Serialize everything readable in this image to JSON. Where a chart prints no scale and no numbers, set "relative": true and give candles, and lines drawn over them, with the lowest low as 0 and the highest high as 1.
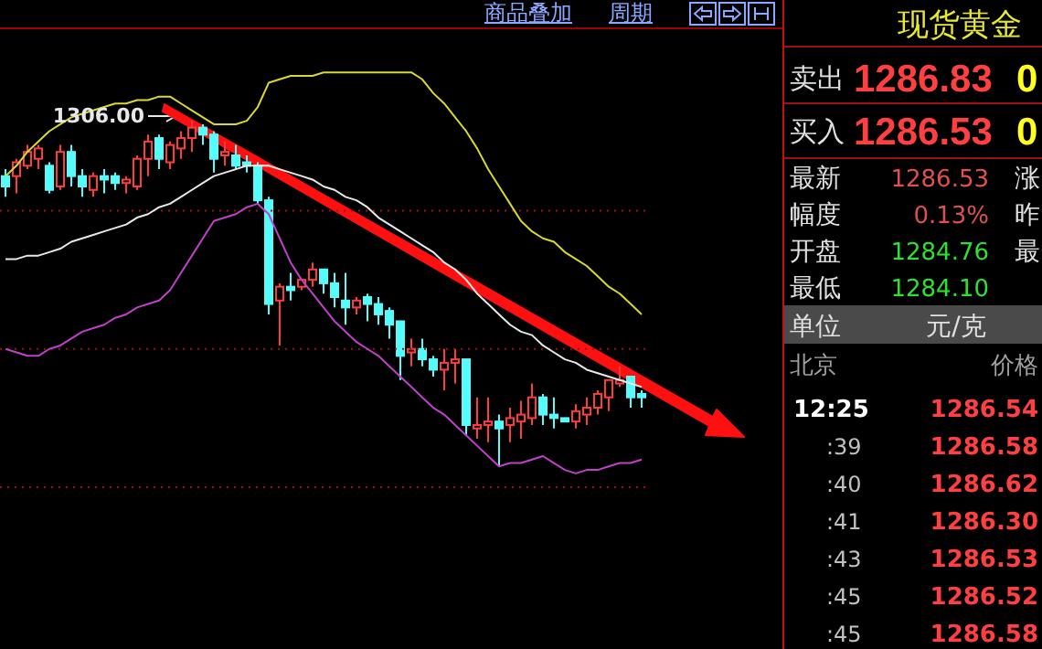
{
  "chart_data": [
    {
      "type": "candlestick",
      "relative": true,
      "tick_labels": false,
      "marker": "none",
      "line_style": "solid",
      "categories": [
        null,
        null,
        null,
        null,
        null,
        null,
        null,
        null,
        null,
        null,
        null,
        null,
        null,
        null,
        null,
        null,
        null,
        null,
        null,
        null,
        null,
        null,
        null,
        null,
        null,
        null,
        null,
        null,
        null,
        null,
        null,
        null,
        null,
        null,
        null,
        null,
        null,
        null,
        null,
        null,
        null,
        null,
        null,
        null,
        null,
        null,
        null,
        null,
        null,
        null,
        null,
        null,
        null,
        null,
        null,
        null,
        null,
        null,
        null
      ],
      "ohlc": [
        [
          0.84,
          0.86,
          0.78,
          0.81
        ],
        [
          0.84,
          0.89,
          0.79,
          0.88
        ],
        [
          0.87,
          0.93,
          0.86,
          0.91
        ],
        [
          0.89,
          0.93,
          0.86,
          0.92
        ],
        [
          0.87,
          0.88,
          0.79,
          0.8
        ],
        [
          0.81,
          0.93,
          0.8,
          0.91
        ],
        [
          0.91,
          0.93,
          0.81,
          0.84
        ],
        [
          0.84,
          0.86,
          0.78,
          0.81
        ],
        [
          0.8,
          0.85,
          0.78,
          0.84
        ],
        [
          0.84,
          0.86,
          0.79,
          0.83
        ],
        [
          0.84,
          0.85,
          0.8,
          0.82
        ],
        [
          0.82,
          0.84,
          0.79,
          0.83
        ],
        [
          0.81,
          0.9,
          0.8,
          0.89
        ],
        [
          0.89,
          0.96,
          0.84,
          0.94
        ],
        [
          0.95,
          0.96,
          0.86,
          0.89
        ],
        [
          0.88,
          0.94,
          0.86,
          0.93
        ],
        [
          0.92,
          0.97,
          0.89,
          0.95
        ],
        [
          0.95,
          1.0,
          0.91,
          0.98
        ],
        [
          0.98,
          0.99,
          0.93,
          0.96
        ],
        [
          0.96,
          0.97,
          0.85,
          0.89
        ],
        [
          0.9,
          0.94,
          0.87,
          0.91
        ],
        [
          0.9,
          0.93,
          0.86,
          0.87
        ],
        [
          0.88,
          0.9,
          0.85,
          0.87
        ],
        [
          0.87,
          0.88,
          0.76,
          0.77
        ],
        [
          0.77,
          0.78,
          0.44,
          0.47
        ],
        [
          0.48,
          0.53,
          0.35,
          0.52
        ],
        [
          0.52,
          0.56,
          0.48,
          0.51
        ],
        [
          0.52,
          0.54,
          0.51,
          0.54
        ],
        [
          0.54,
          0.59,
          0.52,
          0.57
        ],
        [
          0.57,
          0.57,
          0.5,
          0.53
        ],
        [
          0.53,
          0.56,
          0.46,
          0.49
        ],
        [
          0.48,
          0.56,
          0.41,
          0.46
        ],
        [
          0.46,
          0.49,
          0.44,
          0.48
        ],
        [
          0.49,
          0.5,
          0.42,
          0.47
        ],
        [
          0.47,
          0.49,
          0.41,
          0.44
        ],
        [
          0.45,
          0.46,
          0.37,
          0.41
        ],
        [
          0.42,
          0.42,
          0.25,
          0.32
        ],
        [
          0.33,
          0.37,
          0.29,
          0.34
        ],
        [
          0.34,
          0.37,
          0.29,
          0.31
        ],
        [
          0.31,
          0.32,
          0.26,
          0.28
        ],
        [
          0.28,
          0.34,
          0.22,
          0.3
        ],
        [
          0.3,
          0.34,
          0.24,
          0.31
        ],
        [
          0.31,
          0.31,
          0.09,
          0.12
        ],
        [
          0.11,
          0.2,
          0.08,
          0.12
        ],
        [
          0.12,
          0.2,
          0.07,
          0.13
        ],
        [
          0.13,
          0.15,
          0.0,
          0.11
        ],
        [
          0.12,
          0.17,
          0.07,
          0.14
        ],
        [
          0.13,
          0.19,
          0.08,
          0.15
        ],
        [
          0.14,
          0.24,
          0.12,
          0.2
        ],
        [
          0.2,
          0.21,
          0.12,
          0.15
        ],
        [
          0.15,
          0.2,
          0.11,
          0.14
        ],
        [
          0.14,
          0.14,
          0.13,
          0.13
        ],
        [
          0.13,
          0.18,
          0.11,
          0.16
        ],
        [
          0.15,
          0.2,
          0.12,
          0.17
        ],
        [
          0.17,
          0.22,
          0.15,
          0.21
        ],
        [
          0.2,
          0.25,
          0.16,
          0.25
        ],
        [
          0.24,
          0.29,
          0.23,
          0.25
        ],
        [
          0.26,
          0.26,
          0.17,
          0.2
        ],
        [
          0.21,
          0.22,
          0.17,
          0.2
        ]
      ],
      "colors": [
        "#54fcfc",
        "#ff3c3c",
        "#ff3c3c",
        "#ff3c3c",
        "#54fcfc",
        "#ff3c3c",
        "#54fcfc",
        "#54fcfc",
        "#ff3c3c",
        "#54fcfc",
        "#54fcfc",
        "#ff3c3c",
        "#ff3c3c",
        "#ff3c3c",
        "#54fcfc",
        "#ff3c3c",
        "#ff3c3c",
        "#ff3c3c",
        "#54fcfc",
        "#54fcfc",
        "#ff3c3c",
        "#54fcfc",
        "#54fcfc",
        "#54fcfc",
        "#54fcfc",
        "#ff3c3c",
        "#54fcfc",
        "#ff3c3c",
        "#ff3c3c",
        "#54fcfc",
        "#54fcfc",
        "#54fcfc",
        "#ff3c3c",
        "#54fcfc",
        "#54fcfc",
        "#54fcfc",
        "#54fcfc",
        "#ff3c3c",
        "#54fcfc",
        "#54fcfc",
        "#ff3c3c",
        "#ff3c3c",
        "#54fcfc",
        "#ff3c3c",
        "#ff3c3c",
        "#54fcfc",
        "#ff3c3c",
        "#ff3c3c",
        "#ff3c3c",
        "#54fcfc",
        "#54fcfc",
        "#54fcfc",
        "#ff3c3c",
        "#ff3c3c",
        "#ff3c3c",
        "#ff3c3c",
        "#ff3c3c",
        "#54fcfc",
        "#54fcfc"
      ],
      "series": [
        {
          "type": "line",
          "color": "#d8d830",
          "values": [
            0.84,
            0.87,
            0.91,
            0.94,
            0.97,
            0.99,
            1.01,
            1.02,
            1.03,
            1.04,
            1.05,
            1.05,
            1.06,
            1.06,
            1.07,
            1.07,
            1.05,
            1.03,
            1.01,
            0.99,
            0.99,
            0.99,
            1.0,
            1.04,
            1.11,
            1.12,
            1.13,
            1.13,
            1.13,
            1.14,
            1.14,
            1.14,
            1.14,
            1.14,
            1.14,
            1.14,
            1.14,
            1.14,
            1.12,
            1.08,
            1.05,
            1.01,
            0.97,
            0.92,
            0.86,
            0.81,
            0.76,
            0.71,
            0.68,
            0.66,
            0.65,
            0.62,
            0.6,
            0.58,
            0.55,
            0.52,
            0.5,
            0.47,
            0.44
          ]
        },
        {
          "type": "line",
          "color": "#e8e8e8",
          "values": [
            0.6,
            0.6,
            0.61,
            0.61,
            0.62,
            0.63,
            0.65,
            0.66,
            0.67,
            0.68,
            0.69,
            0.7,
            0.72,
            0.73,
            0.75,
            0.76,
            0.78,
            0.8,
            0.82,
            0.84,
            0.85,
            0.86,
            0.87,
            0.87,
            0.87,
            0.86,
            0.85,
            0.84,
            0.83,
            0.81,
            0.8,
            0.78,
            0.77,
            0.75,
            0.72,
            0.7,
            0.68,
            0.66,
            0.64,
            0.62,
            0.59,
            0.57,
            0.54,
            0.5,
            0.47,
            0.44,
            0.41,
            0.39,
            0.38,
            0.35,
            0.33,
            0.31,
            0.3,
            0.28,
            0.27,
            0.26,
            0.25,
            0.24,
            0.23
          ]
        },
        {
          "type": "line",
          "color": "#c040c8",
          "values": [
            0.34,
            0.33,
            0.32,
            0.32,
            0.34,
            0.35,
            0.37,
            0.39,
            0.4,
            0.41,
            0.43,
            0.44,
            0.46,
            0.47,
            0.48,
            0.51,
            0.56,
            0.61,
            0.66,
            0.71,
            0.72,
            0.73,
            0.75,
            0.76,
            0.73,
            0.66,
            0.59,
            0.54,
            0.5,
            0.46,
            0.42,
            0.39,
            0.36,
            0.34,
            0.32,
            0.29,
            0.26,
            0.23,
            0.2,
            0.17,
            0.15,
            0.12,
            0.09,
            0.06,
            0.03,
            0.0,
            0.01,
            0.01,
            0.02,
            0.03,
            0.01,
            -0.01,
            -0.02,
            -0.01,
            -0.01,
            0.0,
            0.01,
            0.01,
            0.02
          ]
        }
      ],
      "ref_lines": [
        {
          "axis": "y",
          "value": 0.74,
          "color": "#a01010",
          "line_style": "dotted"
        },
        {
          "axis": "y",
          "value": 0.34,
          "color": "#a01010",
          "line_style": "dotted"
        },
        {
          "axis": "y",
          "value": -0.06,
          "color": "#a01010",
          "line_style": "dotted"
        }
      ],
      "annotations": [
        "商品叠加",
        "周期",
        "1306.00"
      ]
    },
    {
      "type": "other",
      "title": "现货黄金",
      "annotations": [
        "卖出",
        "1286.83",
        "0",
        "买入",
        "1286.53",
        "0",
        "最新",
        "1286.53",
        "涨",
        "幅度",
        "0.13%",
        "昨",
        "开盘",
        "1284.76",
        "最",
        "最低",
        "1284.10",
        "单位",
        "元/克",
        "北京",
        "价格",
        "12:25",
        "1286.54",
        ":39",
        "1286.58",
        ":40",
        "1286.62",
        ":41",
        "1286.30",
        ":43",
        "1286.53",
        ":45",
        "1286.52",
        ":45",
        "1286.58"
      ]
    }
  ]
}
